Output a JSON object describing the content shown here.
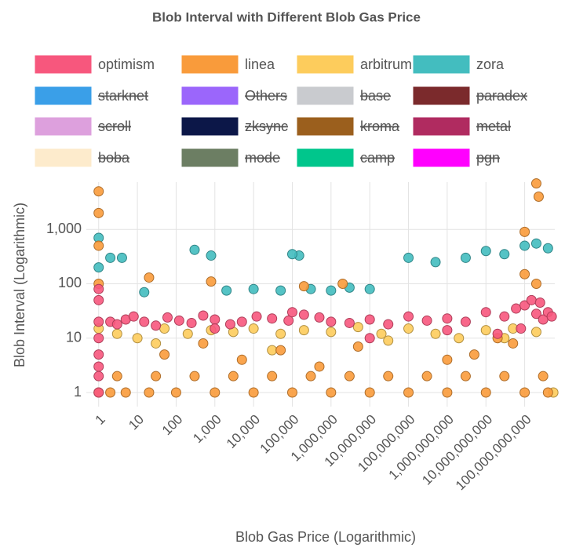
{
  "chart_data": {
    "type": "scatter",
    "title": "Blob Interval with Different Blob Gas Price",
    "x_label": "Blob Gas Price (Logarithmic)",
    "y_label": "Blob Interval (Logarithmic)",
    "log_x": true,
    "log_y": true,
    "grid": true,
    "xlim": [
      0.48,
      600000000000
    ],
    "ylim": [
      0.55,
      7400
    ],
    "xticks": [
      1,
      10,
      100,
      {
        "value": 1000,
        "label": "1,000"
      },
      {
        "value": 10000,
        "label": "10,000"
      },
      {
        "value": 100000,
        "label": "100,000"
      },
      {
        "value": 1000000,
        "label": "1,000,000"
      },
      {
        "value": 10000000,
        "label": "10,000,000"
      },
      {
        "value": 100000000,
        "label": "100,000,000"
      },
      {
        "value": 1000000000,
        "label": "1,000,000,000"
      },
      {
        "value": 10000000000,
        "label": "10,000,000,000"
      },
      {
        "value": 100000000000,
        "label": "100,000,000,000"
      }
    ],
    "yticks": [
      1,
      10,
      100,
      {
        "value": 1000,
        "label": "1,000"
      }
    ],
    "series": [
      {
        "name": "optimism",
        "color": "#f7577d",
        "hidden": false,
        "x": [
          1,
          1,
          1,
          1,
          1,
          1,
          1,
          1,
          2,
          3,
          5,
          8,
          15,
          30,
          60,
          120,
          250,
          500,
          1000,
          2500,
          5000,
          12000,
          30000,
          80000,
          200000,
          500000,
          1000000,
          3000000,
          10000000,
          30000000,
          100000000,
          300000000,
          1000000000,
          3000000000,
          10000000000,
          30000000000,
          60000000000,
          100000000000,
          200000000000,
          300000000000,
          400000000000,
          500000000000,
          80000000000,
          20000000000,
          150000000000,
          250000000000,
          1000,
          100000,
          10000000,
          1000000000
        ],
        "values": [
          1,
          2,
          3,
          5,
          10,
          20,
          50,
          80,
          20,
          18,
          22,
          25,
          20,
          17,
          24,
          21,
          19,
          26,
          22,
          18,
          20,
          25,
          23,
          21,
          27,
          24,
          20,
          19,
          22,
          18,
          25,
          21,
          23,
          20,
          30,
          25,
          35,
          40,
          28,
          22,
          30,
          25,
          15,
          12,
          50,
          45,
          15,
          30,
          10,
          14
        ]
      },
      {
        "name": "linea",
        "color": "#f99b3b",
        "hidden": false,
        "x": [
          1,
          1,
          1,
          1,
          1,
          2,
          5,
          20,
          100,
          1000,
          10000,
          100000,
          1000000,
          10000000,
          100000000,
          1000000000,
          10000000000,
          100000000000,
          400000000000,
          3,
          30,
          300,
          3000,
          30000,
          300000,
          3000000,
          30000000,
          300000000,
          3000000000,
          30000000000,
          300000000000,
          50,
          500,
          5000,
          50000,
          500000,
          5000000,
          5000000000,
          50000000000,
          200000000000,
          20,
          800,
          200000,
          2000000,
          1000000000,
          20000000000,
          100000000000,
          230000000000,
          200000000000,
          100000000000
        ],
        "values": [
          1,
          100,
          500,
          2000,
          5000,
          1,
          1,
          1,
          1,
          1,
          1,
          1,
          1,
          1,
          1,
          1,
          1,
          1,
          1,
          2,
          2,
          2,
          2,
          2,
          2,
          2,
          2,
          2,
          2,
          2,
          2,
          5,
          8,
          4,
          6,
          3,
          7,
          5,
          8,
          100,
          130,
          110,
          90,
          100,
          4,
          10,
          150,
          4000,
          7000,
          900
        ]
      },
      {
        "name": "arbitrum",
        "color": "#fdcc5c",
        "hidden": false,
        "x": [
          1,
          3,
          10,
          50,
          200,
          800,
          3000,
          10000,
          50000,
          200000,
          1000000,
          5000000,
          20000000,
          100000000,
          500000000,
          2000000000,
          10000000000,
          50000000000,
          200000000000,
          550000000000,
          30,
          30000,
          30000000,
          30000000000
        ],
        "values": [
          15,
          12,
          10,
          15,
          12,
          14,
          13,
          15,
          12,
          14,
          13,
          16,
          12,
          15,
          12,
          10,
          14,
          15,
          13,
          1,
          8,
          6,
          9,
          10
        ]
      },
      {
        "name": "zora",
        "color": "#43bdbf",
        "hidden": false,
        "x": [
          1,
          1,
          2,
          4,
          15,
          300,
          800,
          2000,
          10000,
          50000,
          150000,
          300000,
          1000000,
          3000000,
          10000000,
          100000,
          100000000,
          500000000,
          3000000000,
          10000000000,
          30000000000,
          100000000000,
          200000000000,
          400000000000
        ],
        "values": [
          700,
          200,
          300,
          300,
          70,
          420,
          330,
          75,
          80,
          75,
          330,
          80,
          75,
          85,
          80,
          350,
          300,
          250,
          300,
          400,
          350,
          500,
          550,
          450
        ]
      },
      {
        "name": "starknet",
        "color": "#3a9fe8",
        "hidden": true,
        "x": [],
        "values": []
      },
      {
        "name": "Others",
        "color": "#9b66fb",
        "hidden": true,
        "x": [],
        "values": []
      },
      {
        "name": "base",
        "color": "#c9cbcf",
        "hidden": true,
        "x": [],
        "values": []
      },
      {
        "name": "paradex",
        "color": "#7b2a2c",
        "hidden": true,
        "x": [],
        "values": []
      },
      {
        "name": "scroll",
        "color": "#dda0dd",
        "hidden": true,
        "x": [],
        "values": []
      },
      {
        "name": "zksync",
        "color": "#0c1748",
        "hidden": true,
        "x": [],
        "values": []
      },
      {
        "name": "kroma",
        "color": "#9b5f1d",
        "hidden": true,
        "x": [],
        "values": []
      },
      {
        "name": "metal",
        "color": "#b02b60",
        "hidden": true,
        "x": [],
        "values": []
      },
      {
        "name": "boba",
        "color": "#fdebcc",
        "hidden": true,
        "x": [],
        "values": []
      },
      {
        "name": "mode",
        "color": "#6c7e63",
        "hidden": true,
        "x": [],
        "values": []
      },
      {
        "name": "camp",
        "color": "#00c68c",
        "hidden": true,
        "x": [],
        "values": []
      },
      {
        "name": "pgn",
        "color": "#ff00fe",
        "hidden": true,
        "x": [],
        "values": []
      }
    ]
  }
}
